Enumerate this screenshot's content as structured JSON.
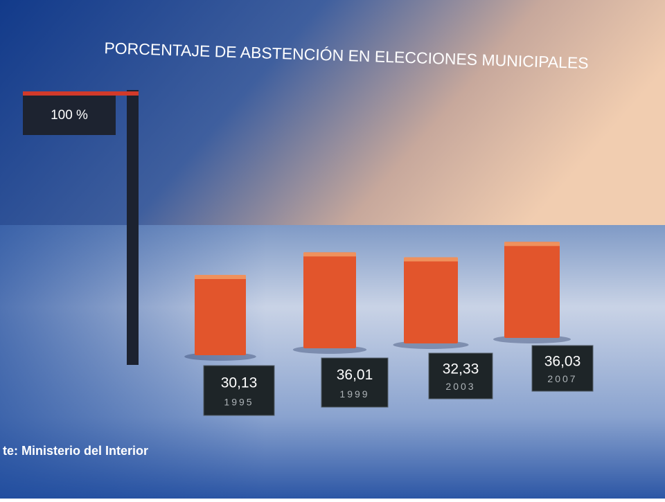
{
  "chart_data": {
    "type": "bar",
    "title": "PORCENTAJE DE ABSTENCIÓN EN ELECCIONES MUNICIPALES",
    "categories": [
      "1995",
      "1999",
      "2003",
      "2007"
    ],
    "values": [
      30.13,
      36.01,
      32.33,
      36.03
    ],
    "value_labels": [
      "30,13",
      "36,01",
      "32,33",
      "36,03"
    ],
    "color": "#e2552c",
    "ylim": [
      0,
      100
    ],
    "yticks": [
      {
        "value": 100,
        "label": "100 %"
      }
    ],
    "source": "te: Ministerio del Interior"
  }
}
